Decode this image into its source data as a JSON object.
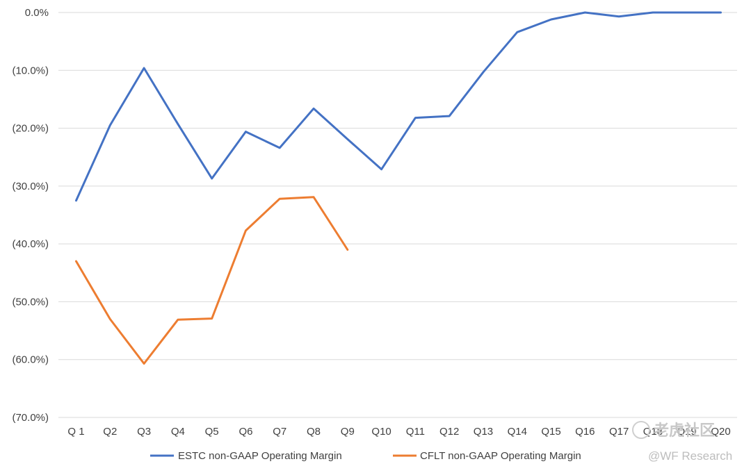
{
  "chart_data": {
    "type": "line",
    "categories": [
      "Q 1",
      "Q2",
      "Q3",
      "Q4",
      "Q5",
      "Q6",
      "Q7",
      "Q8",
      "Q9",
      "Q10",
      "Q11",
      "Q12",
      "Q13",
      "Q14",
      "Q15",
      "Q16",
      "Q17",
      "Q18",
      "Q19",
      "Q20"
    ],
    "series": [
      {
        "name": "ESTC non-GAAP Operating Margin",
        "color": "#4472C4",
        "values": [
          -32.5,
          -19.5,
          -9.6,
          -19.3,
          -28.7,
          -20.6,
          -23.4,
          -16.6,
          -21.9,
          -27.1,
          -18.2,
          -17.9,
          -10.3,
          -3.4,
          -1.2,
          0.0,
          -0.7,
          0.0,
          0.0,
          0.0
        ]
      },
      {
        "name": "CFLT non-GAAP Operating Margin",
        "color": "#ED7D31",
        "values": [
          -43.0,
          -53.0,
          -60.7,
          -53.1,
          -52.9,
          -37.7,
          -32.2,
          -31.9,
          -41.0,
          null,
          null,
          null,
          null,
          null,
          null,
          null,
          null,
          null,
          null,
          null
        ]
      }
    ],
    "yticks": [
      "0.0%",
      "(10.0%)",
      "(20.0%)",
      "(30.0%)",
      "(40.0%)",
      "(50.0%)",
      "(60.0%)",
      "(70.0%)"
    ],
    "ylim": [
      -70,
      0
    ],
    "grid": true,
    "legend_position": "bottom",
    "title": "",
    "xlabel": "",
    "ylabel": ""
  },
  "watermark": {
    "brand": "老虎社区",
    "credit": "@WF Research"
  }
}
